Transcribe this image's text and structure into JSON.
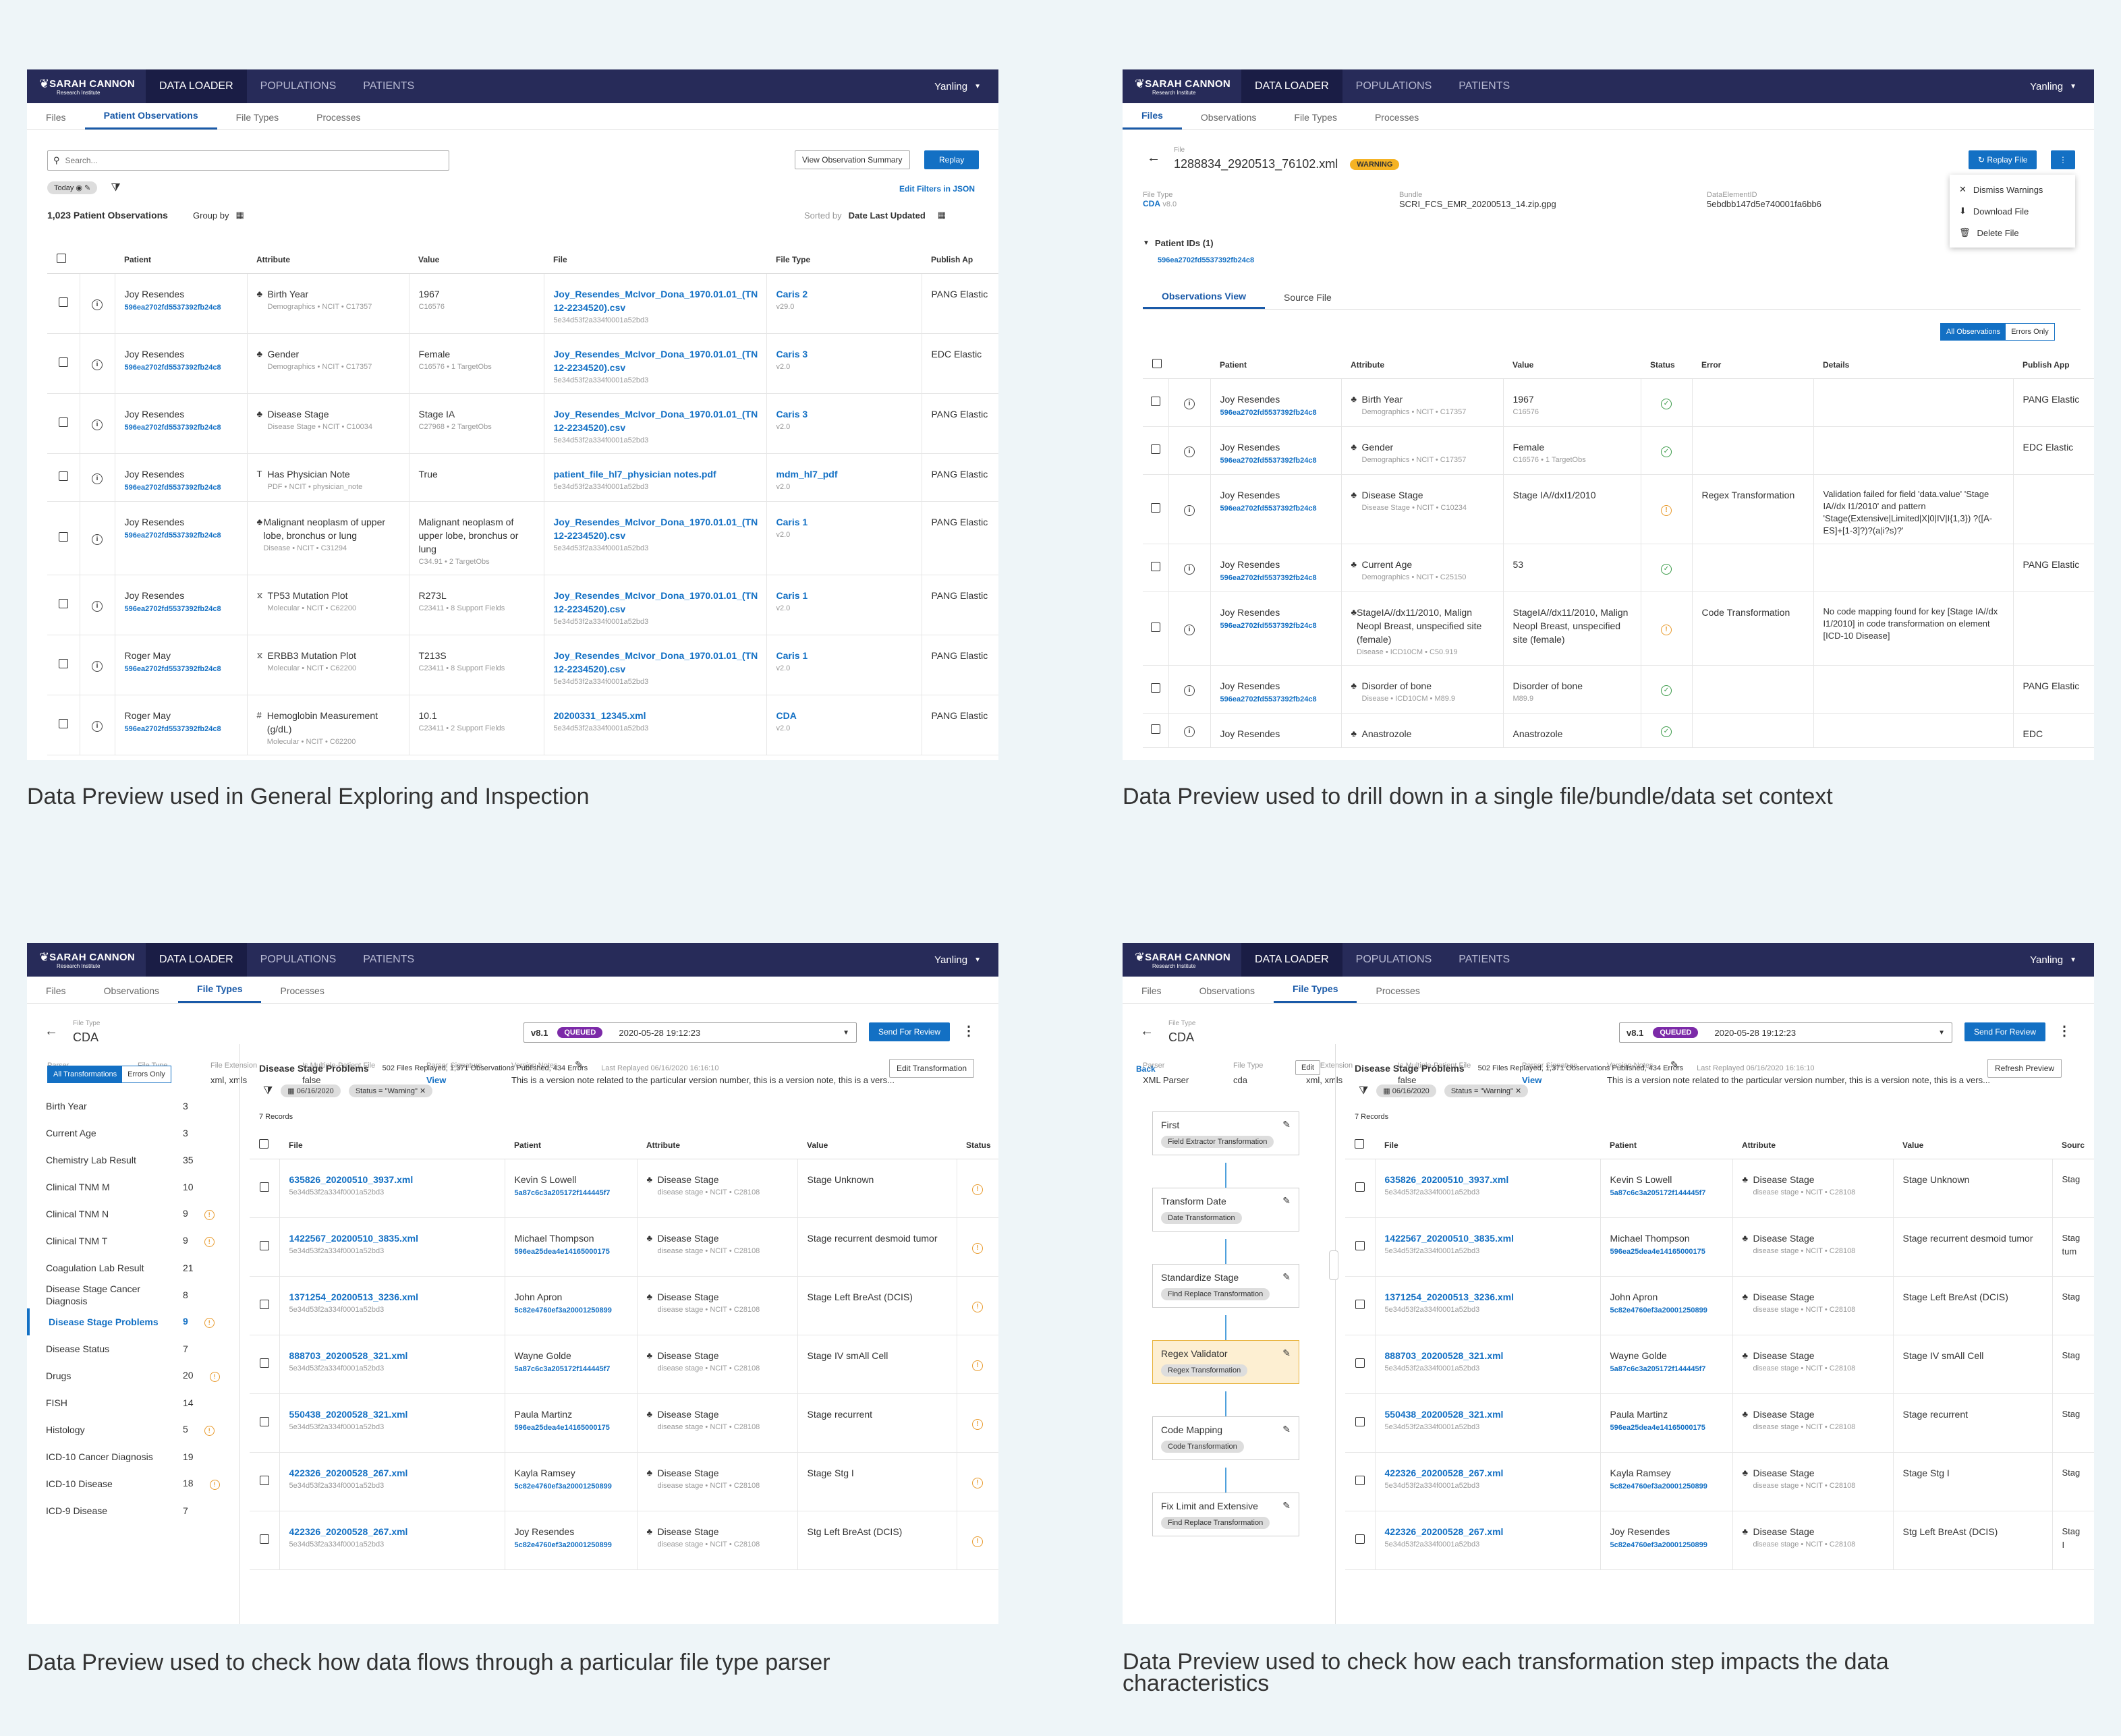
{
  "app": {
    "brand": "SARAH CANNON",
    "brand_sub": "Research Institute",
    "nav": [
      "DATA LOADER",
      "POPULATIONS",
      "PATIENTS"
    ],
    "user": "Yanling"
  },
  "captions": [
    "Data Preview used in General Exploring and Inspection",
    "Data Preview used to drill down in a single file/bundle/data set context",
    "Data Preview used to check how data flows through a particular file type parser",
    "Data Preview used to check how each transformation step impacts the data characteristics"
  ],
  "p1": {
    "tabs": [
      "Files",
      "Patient Observations",
      "File Types",
      "Processes"
    ],
    "search_placeholder": "Search...",
    "view_summary": "View Observation Summary",
    "replay": "Replay",
    "chip_today": "Today",
    "edit_filters": "Edit Filters in JSON",
    "count": "1,023 Patient Observations",
    "group_by": "Group by",
    "sorted_by": "Sorted by",
    "sort_field": "Date Last Updated",
    "columns": [
      "Patient",
      "Attribute",
      "Value",
      "File",
      "File Type",
      "Publish Ap"
    ],
    "rows": [
      {
        "pname": "Joy Resendes",
        "pid": "596ea2702fd5537392fb24c8",
        "icon": "♣",
        "attr": "Birth Year",
        "attr_sub": "Demographics  •  NCIT  •  C17357",
        "val": "1967",
        "val_sub": "C16576",
        "file": "Joy_Resendes_McIvor_Dona_1970.01.01_(TN 12-2234520).csv",
        "file_sub": "5e34d53f2a334f0001a52bd3",
        "ft": "Caris 2",
        "ft_sub": "v29.0",
        "pub": "PANG Elastic"
      },
      {
        "pname": "Joy Resendes",
        "pid": "596ea2702fd5537392fb24c8",
        "icon": "♣",
        "attr": "Gender",
        "attr_sub": "Demographics  •  NCIT  •  C17357",
        "val": "Female",
        "val_sub": "C16576  •  1 TargetObs",
        "file": "Joy_Resendes_McIvor_Dona_1970.01.01_(TN 12-2234520).csv",
        "file_sub": "5e34d53f2a334f0001a52bd3",
        "ft": "Caris 3",
        "ft_sub": "v2.0",
        "pub": "EDC Elastic"
      },
      {
        "pname": "Joy Resendes",
        "pid": "596ea2702fd5537392fb24c8",
        "icon": "♣",
        "attr": "Disease Stage",
        "attr_sub": "Disease Stage  •  NCIT  •  C10034",
        "val": "Stage IA",
        "val_sub": "C27968  •  2 TargetObs",
        "file": "Joy_Resendes_McIvor_Dona_1970.01.01_(TN 12-2234520).csv",
        "file_sub": "5e34d53f2a334f0001a52bd3",
        "ft": "Caris 3",
        "ft_sub": "v2.0",
        "pub": "PANG Elastic"
      },
      {
        "pname": "Joy Resendes",
        "pid": "596ea2702fd5537392fb24c8",
        "icon": "T",
        "attr": "Has Physician Note",
        "attr_sub": "PDF  •  NCIT  •  physician_note",
        "val": "True",
        "val_sub": "",
        "file": "patient_file_hl7_physician notes.pdf",
        "file_sub": "5e34d53f2a334f0001a52bd3",
        "ft": "mdm_hl7_pdf",
        "ft_sub": "v2.0",
        "pub": "PANG Elastic"
      },
      {
        "pname": "Joy Resendes",
        "pid": "596ea2702fd5537392fb24c8",
        "icon": "♣",
        "attr": "Malignant neoplasm of upper lobe, bronchus or lung",
        "attr_sub": "Disease  •  NCIT  •  C31294",
        "val": "Malignant neoplasm of upper lobe, bronchus or lung",
        "val_sub": "C34.91  •  2 TargetObs",
        "file": "Joy_Resendes_McIvor_Dona_1970.01.01_(TN 12-2234520).csv",
        "file_sub": "5e34d53f2a334f0001a52bd3",
        "ft": "Caris 1",
        "ft_sub": "v2.0",
        "pub": "PANG Elastic"
      },
      {
        "pname": "Joy Resendes",
        "pid": "596ea2702fd5537392fb24c8",
        "icon": "⧖",
        "attr": "TP53 Mutation Plot",
        "attr_sub": "Molecular  •  NCIT  •  C62200",
        "val": "R273L",
        "val_sub": "C23411  •  8 Support Fields",
        "file": "Joy_Resendes_McIvor_Dona_1970.01.01_(TN 12-2234520).csv",
        "file_sub": "5e34d53f2a334f0001a52bd3",
        "ft": "Caris 1",
        "ft_sub": "v2.0",
        "pub": "PANG Elastic"
      },
      {
        "pname": "Roger May",
        "pid": "596ea2702fd5537392fb24c8",
        "icon": "⧖",
        "attr": "ERBB3 Mutation Plot",
        "attr_sub": "Molecular  •  NCIT  •  C62200",
        "val": "T213S",
        "val_sub": "C23411  •  8 Support Fields",
        "file": "Joy_Resendes_McIvor_Dona_1970.01.01_(TN 12-2234520).csv",
        "file_sub": "5e34d53f2a334f0001a52bd3",
        "ft": "Caris 1",
        "ft_sub": "v2.0",
        "pub": "PANG Elastic"
      },
      {
        "pname": "Roger May",
        "pid": "596ea2702fd5537392fb24c8",
        "icon": "#",
        "attr": "Hemoglobin Measurement (g/dL)",
        "attr_sub": "Molecular  •  NCIT  •  C62200",
        "val": "10.1",
        "val_sub": "C23411  •  2 Support Fields",
        "file": "20200331_12345.xml",
        "file_sub": "5e34d53f2a334f0001a52bd3",
        "ft": "CDA",
        "ft_sub": "v2.0",
        "pub": "PANG Elastic"
      }
    ]
  },
  "p2": {
    "tabs": [
      "Files",
      "Observations",
      "File Types",
      "Processes"
    ],
    "file_label": "File",
    "file_name": "1288834_2920513_76102.xml",
    "warning": "WARNING",
    "replay_file": "Replay File",
    "menu": [
      "Dismiss Warnings",
      "Download File",
      "Delete File"
    ],
    "file_type_label": "File Type",
    "file_type": "CDA",
    "file_type_ver": "v8.0",
    "bundle_label": "Bundle",
    "bundle": "SCRI_FCS_EMR_20200513_14.zip.gpg",
    "deid_label": "DataElementID",
    "deid": "5ebdbb147d5e740001fa6bb6",
    "patient_ids": "Patient IDs (1)",
    "patient_id": "596ea2702fd5537392fb24c8",
    "view_tabs": [
      "Observations View",
      "Source File"
    ],
    "all_obs": "All Observations",
    "errors_only": "Errors Only",
    "columns": [
      "Patient",
      "Attribute",
      "Value",
      "Status",
      "Error",
      "Details",
      "Publish App"
    ],
    "rows": [
      {
        "pname": "Joy Resendes",
        "pid": "596ea2702fd5537392fb24c8",
        "attr": "Birth Year",
        "attr_sub": "Demographics  •  NCIT  •  C17357",
        "val": "1967",
        "val_sub": "C16576",
        "status": "ok",
        "error": "",
        "details": "",
        "pub": "PANG Elastic"
      },
      {
        "pname": "Joy Resendes",
        "pid": "596ea2702fd5537392fb24c8",
        "attr": "Gender",
        "attr_sub": "Demographics  •  NCIT  •  C17357",
        "val": "Female",
        "val_sub": "C16576  •  1 TargetObs",
        "status": "ok",
        "error": "",
        "details": "",
        "pub": "EDC Elastic"
      },
      {
        "pname": "Joy Resendes",
        "pid": "596ea2702fd5537392fb24c8",
        "attr": "Disease Stage",
        "attr_sub": "Disease Stage  •  NCIT  •  C10234",
        "val": "Stage IA//dxI1/2010",
        "val_sub": "",
        "status": "warn",
        "error": "Regex Transformation",
        "details": "Validation failed for field 'data.value' 'Stage IA//dx I1/2010' and pattern 'Stage(Extensive|Limited|X|0|IV|I{1,3}) ?([A-ES]+[1-3]?)?(a|i?s)?'",
        "pub": ""
      },
      {
        "pname": "Joy Resendes",
        "pid": "596ea2702fd5537392fb24c8",
        "attr": "Current Age",
        "attr_sub": "Demographics  •  NCIT  •  C25150",
        "val": "53",
        "val_sub": "",
        "status": "ok",
        "error": "",
        "details": "",
        "pub": "PANG Elastic"
      },
      {
        "pname": "Joy Resendes",
        "pid": "596ea2702fd5537392fb24c8",
        "attr": "StageIA//dx11/2010, Malign Neopl Breast, unspecified site (female)",
        "attr_sub": "Disease  •  ICD10CM  •  C50.919",
        "val": "StageIA//dx11/2010, Malign Neopl Breast, unspecified site (female)",
        "val_sub": "",
        "status": "warn",
        "error": "Code Transformation",
        "details": "No code mapping found for key [Stage IA//dx I1/2010] in code transformation on element [ICD-10 Disease]",
        "pub": ""
      },
      {
        "pname": "Joy Resendes",
        "pid": "596ea2702fd5537392fb24c8",
        "attr": "Disorder of bone",
        "attr_sub": "Disease  •  ICD10CM  •  M89.9",
        "val": "Disorder of bone",
        "val_sub": "M89.9",
        "status": "ok",
        "error": "",
        "details": "",
        "pub": "PANG Elastic"
      },
      {
        "pname": "Joy Resendes",
        "pid": "",
        "attr": "Anastrozole",
        "attr_sub": "",
        "val": "Anastrozole",
        "val_sub": "",
        "status": "ok",
        "error": "",
        "details": "",
        "pub": "EDC"
      }
    ]
  },
  "ft": {
    "tabs": [
      "Files",
      "Observations",
      "File Types",
      "Processes"
    ],
    "file_type_label": "File Type",
    "file_type": "CDA",
    "version": "v8.1",
    "queued": "QUEUED",
    "timestamp": "2020-05-28 19:12:23",
    "send_review": "Send For Review",
    "meta_labels": [
      "Parser",
      "File Type",
      "File Extension",
      "Is Multiple-Patient File",
      "Parser Signature",
      "Version Notes"
    ],
    "meta_values": [
      "XML Parser",
      "cda",
      "xml, xmls",
      "false",
      "View",
      "This is a version note related to the particular version number, this is a version note, this is a vers..."
    ],
    "section_title": "Disease Stage Problems",
    "section_stats": "502 Files Replayed, 1,371 Observations Published, 434 Errors",
    "last_replayed": "Last Replayed 06/16/2020 16:16:10",
    "edit_transformation": "Edit Transformation",
    "refresh_preview": "Refresh Preview",
    "chip_date": "06/16/2020",
    "chip_status": "Status = \"Warning\"",
    "records": "7 Records",
    "columns": [
      "File",
      "Patient",
      "Attribute",
      "Value",
      "Status"
    ],
    "columns4": [
      "File",
      "Patient",
      "Attribute",
      "Value",
      "Sourc"
    ],
    "all_trans": "All Transformations",
    "errors_only": "Errors Only",
    "back": "Back",
    "edit": "Edit",
    "sidebar": [
      {
        "label": "Birth Year",
        "count": "3",
        "warn": false
      },
      {
        "label": "Current Age",
        "count": "3",
        "warn": false
      },
      {
        "label": "Chemistry Lab Result",
        "count": "35",
        "warn": false
      },
      {
        "label": "Clinical TNM M",
        "count": "10",
        "warn": false
      },
      {
        "label": "Clinical TNM N",
        "count": "9",
        "warn": true
      },
      {
        "label": "Clinical TNM T",
        "count": "9",
        "warn": true
      },
      {
        "label": "Coagulation Lab Result",
        "count": "21",
        "warn": false
      },
      {
        "label": "Disease Stage Cancer Diagnosis",
        "count": "8",
        "warn": false
      },
      {
        "label": "Disease Stage Problems",
        "count": "9",
        "warn": true,
        "active": true
      },
      {
        "label": "Disease Status",
        "count": "7",
        "warn": false
      },
      {
        "label": "Drugs",
        "count": "20",
        "warn": true
      },
      {
        "label": "FISH",
        "count": "14",
        "warn": false
      },
      {
        "label": "Histology",
        "count": "5",
        "warn": true
      },
      {
        "label": "ICD-10 Cancer Diagnosis",
        "count": "19",
        "warn": false
      },
      {
        "label": "ICD-10 Disease",
        "count": "18",
        "warn": true
      },
      {
        "label": "ICD-9 Disease",
        "count": "7",
        "warn": false
      }
    ],
    "steps": [
      {
        "name": "First",
        "chip": "Field Extractor Transformation"
      },
      {
        "name": "Transform Date",
        "chip": "Date Transformation"
      },
      {
        "name": "Standardize Stage",
        "chip": "Find Replace Transformation"
      },
      {
        "name": "Regex Validator",
        "chip": "Regex Transformation",
        "active": true
      },
      {
        "name": "Code Mapping",
        "chip": "Code Transformation"
      },
      {
        "name": "Fix Limit and Extensive",
        "chip": "Find Replace Transformation"
      }
    ],
    "rows": [
      {
        "file": "635826_20200510_3937.xml",
        "file_sub": "5e34d53f2a334f0001a52bd3",
        "pname": "Kevin S Lowell",
        "pid": "5a87c6c3a205172f144445f7",
        "attr": "Disease Stage",
        "attr_sub": "disease stage  •  NCIT  •  C28108",
        "val": "Stage Unknown",
        "src": "Stag"
      },
      {
        "file": "1422567_20200510_3835.xml",
        "file_sub": "5e34d53f2a334f0001a52bd3",
        "pname": "Michael Thompson",
        "pid": "596ea25dea4e14165000175",
        "attr": "Disease Stage",
        "attr_sub": "disease stage  •  NCIT  •  C28108",
        "val": "Stage recurrent desmoid tumor",
        "src": "Stag tum"
      },
      {
        "file": "1371254_20200513_3236.xml",
        "file_sub": "5e34d53f2a334f0001a52bd3",
        "pname": "John Apron",
        "pid": "5c82e4760ef3a20001250899",
        "attr": "Disease Stage",
        "attr_sub": "disease stage  •  NCIT  •  C28108",
        "val": "Stage Left BreAst (DCIS)",
        "src": "Stag"
      },
      {
        "file": "888703_20200528_321.xml",
        "file_sub": "5e34d53f2a334f0001a52bd3",
        "pname": "Wayne Golde",
        "pid": "5a87c6c3a205172f144445f7",
        "attr": "Disease Stage",
        "attr_sub": "disease stage  •  NCIT  •  C28108",
        "val": "Stage IV smAll Cell",
        "src": "Stag"
      },
      {
        "file": "550438_20200528_321.xml",
        "file_sub": "5e34d53f2a334f0001a52bd3",
        "pname": "Paula Martinz",
        "pid": "596ea25dea4e14165000175",
        "attr": "Disease Stage",
        "attr_sub": "disease stage  •  NCIT  •  C28108",
        "val": "Stage recurrent",
        "src": "Stag"
      },
      {
        "file": "422326_20200528_267.xml",
        "file_sub": "5e34d53f2a334f0001a52bd3",
        "pname": "Kayla Ramsey",
        "pid": "5c82e4760ef3a20001250899",
        "attr": "Disease Stage",
        "attr_sub": "disease stage  •  NCIT  •  C28108",
        "val": "Stage Stg I",
        "src": "Stag"
      },
      {
        "file": "422326_20200528_267.xml",
        "file_sub": "5e34d53f2a334f0001a52bd3",
        "pname": "Joy Resendes",
        "pid": "5c82e4760ef3a20001250899",
        "attr": "Disease Stage",
        "attr_sub": "disease stage  •  NCIT  •  C28108",
        "val": "Stg Left BreAst (DCIS)",
        "src": "Stag I"
      }
    ]
  }
}
